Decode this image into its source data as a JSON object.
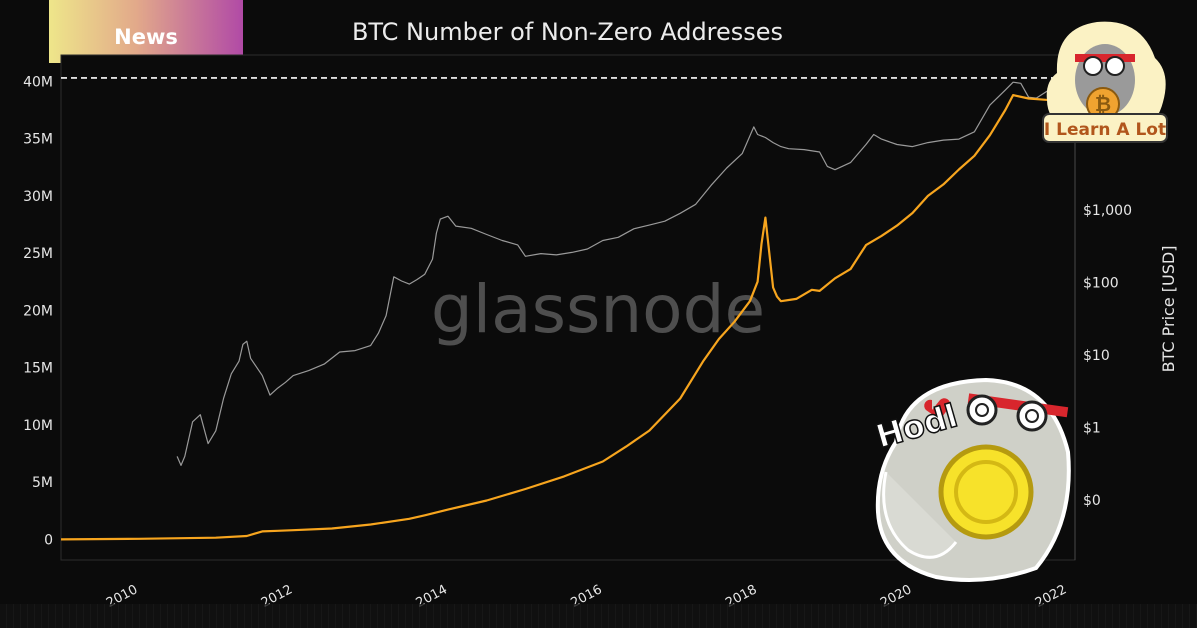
{
  "badge": {
    "label": "News"
  },
  "watermark": "glassnode",
  "logo_badge": {
    "text": "I Learn A Lot"
  },
  "sticker": {
    "text": "Hodl"
  },
  "chart_data": {
    "type": "line",
    "title": "BTC Number of Non-Zero Addresses",
    "xlabel": "",
    "ylabel": "",
    "ylabel_right": "BTC Price [USD]",
    "xlim": [
      2009.0,
      2022.1
    ],
    "ylim": [
      -1800000,
      42300000
    ],
    "y2_scale": "log",
    "x_ticks": [
      2010,
      2012,
      2014,
      2016,
      2018,
      2020,
      2022
    ],
    "x_tick_labels": [
      "2010",
      "2012",
      "2014",
      "2016",
      "2018",
      "2020",
      "2022"
    ],
    "y_ticks": [
      0,
      5000000,
      10000000,
      15000000,
      20000000,
      25000000,
      30000000,
      35000000,
      40000000
    ],
    "y_tick_labels": [
      "0",
      "5M",
      "10M",
      "15M",
      "20M",
      "25M",
      "30M",
      "35M",
      "40M"
    ],
    "y2_ticks": [
      0.1,
      1,
      10,
      100,
      1000
    ],
    "y2_tick_labels": [
      "$0",
      "$1",
      "$10",
      "$100",
      "$1,000"
    ],
    "reference_line": {
      "y": 40300000,
      "style": "dashed"
    },
    "series": [
      {
        "axis": "right",
        "color": "#9a9a9a",
        "x": [
          2010.5,
          2010.55,
          2010.6,
          2010.7,
          2010.8,
          2010.9,
          2011.0,
          2011.1,
          2011.2,
          2011.3,
          2011.35,
          2011.4,
          2011.45,
          2011.5,
          2011.6,
          2011.7,
          2011.8,
          2011.9,
          2012.0,
          2012.2,
          2012.4,
          2012.6,
          2012.8,
          2013.0,
          2013.1,
          2013.2,
          2013.3,
          2013.4,
          2013.5,
          2013.6,
          2013.7,
          2013.8,
          2013.85,
          2013.9,
          2014.0,
          2014.1,
          2014.3,
          2014.5,
          2014.7,
          2014.9,
          2015.0,
          2015.2,
          2015.4,
          2015.6,
          2015.8,
          2016.0,
          2016.2,
          2016.4,
          2016.6,
          2016.8,
          2017.0,
          2017.2,
          2017.4,
          2017.6,
          2017.8,
          2017.95,
          2018.0,
          2018.1,
          2018.2,
          2018.3,
          2018.4,
          2018.6,
          2018.8,
          2018.9,
          2019.0,
          2019.2,
          2019.4,
          2019.5,
          2019.6,
          2019.8,
          2020.0,
          2020.2,
          2020.4,
          2020.6,
          2020.8,
          2021.0,
          2021.2,
          2021.3,
          2021.4,
          2021.5,
          2021.6,
          2021.8,
          2021.9,
          2022.0
        ],
        "y": [
          0.4,
          0.3,
          0.4,
          1.2,
          1.5,
          0.6,
          0.9,
          2.5,
          5.5,
          8.2,
          14.0,
          15.5,
          9.0,
          7.5,
          5.2,
          2.8,
          3.5,
          4.2,
          5.2,
          6.1,
          7.5,
          11.0,
          11.5,
          13.5,
          20.0,
          35.0,
          120.0,
          105.0,
          95.0,
          110.0,
          130.0,
          210.0,
          480.0,
          750.0,
          820.0,
          600.0,
          560.0,
          460.0,
          380.0,
          330.0,
          230.0,
          250.0,
          240.0,
          260.0,
          290.0,
          380.0,
          420.0,
          550.0,
          620.0,
          700.0,
          900.0,
          1200.0,
          2200.0,
          3800.0,
          6000.0,
          14000.0,
          11000.0,
          10000.0,
          8500.0,
          7500.0,
          7000.0,
          6800.0,
          6300.0,
          4000.0,
          3600.0,
          4500.0,
          8000.0,
          11000.0,
          9500.0,
          8000.0,
          7500.0,
          8500.0,
          9200.0,
          9500.0,
          12000.0,
          28000.0,
          45000.0,
          58000.0,
          56000.0,
          36000.0,
          35000.0,
          48000.0,
          62000.0,
          48000.0
        ]
      },
      {
        "axis": "left",
        "color": "#f7a51e",
        "x": [
          2009.0,
          2010.0,
          2011.0,
          2011.4,
          2011.5,
          2011.6,
          2011.8,
          2012.0,
          2012.5,
          2013.0,
          2013.5,
          2013.7,
          2014.0,
          2014.5,
          2015.0,
          2015.5,
          2016.0,
          2016.3,
          2016.6,
          2017.0,
          2017.3,
          2017.5,
          2017.7,
          2017.9,
          2018.0,
          2018.05,
          2018.1,
          2018.2,
          2018.25,
          2018.3,
          2018.5,
          2018.7,
          2018.8,
          2019.0,
          2019.2,
          2019.4,
          2019.6,
          2019.8,
          2020.0,
          2020.2,
          2020.4,
          2020.6,
          2020.8,
          2021.0,
          2021.2,
          2021.3,
          2021.5,
          2021.7,
          2021.9,
          2022.0
        ],
        "y": [
          0,
          50000,
          150000,
          300000,
          500000,
          700000,
          750000,
          800000,
          950000,
          1300000,
          1800000,
          2100000,
          2600000,
          3400000,
          4400000,
          5500000,
          6800000,
          8100000,
          9500000,
          12300000,
          15600000,
          17500000,
          19000000,
          20800000,
          22500000,
          25800000,
          28100000,
          22000000,
          21200000,
          20800000,
          21000000,
          21800000,
          21700000,
          22800000,
          23600000,
          25700000,
          26500000,
          27400000,
          28500000,
          30000000,
          31000000,
          32300000,
          33500000,
          35300000,
          37500000,
          38800000,
          38500000,
          38400000,
          38300000,
          38200000
        ]
      }
    ]
  }
}
